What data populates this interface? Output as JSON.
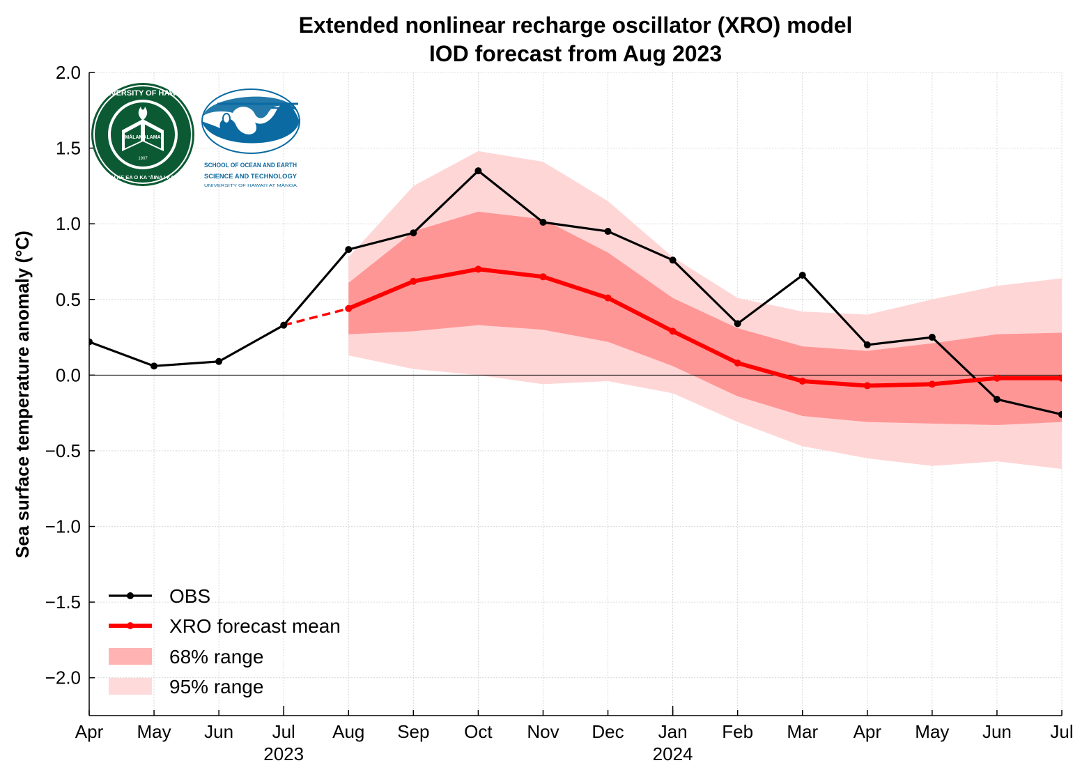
{
  "chart_data": {
    "type": "line",
    "title": "Extended nonlinear recharge oscillator (XRO) model",
    "subtitle": "IOD forecast from Aug 2023",
    "xlabel": "",
    "ylabel": "Sea surface temperature anomaly (°C)",
    "ylim": [
      -2.25,
      2.0
    ],
    "yticks": [
      "2.0",
      "1.5",
      "1.0",
      "0.5",
      "0.0",
      "−0.5",
      "−1.0",
      "−1.5",
      "−2.0"
    ],
    "ytick_values": [
      2.0,
      1.5,
      1.0,
      0.5,
      0.0,
      -0.5,
      -1.0,
      -1.5,
      -2.0
    ],
    "months": [
      "Apr",
      "May",
      "Jun",
      "Jul",
      "Aug",
      "Sep",
      "Oct",
      "Nov",
      "Dec",
      "Jan",
      "Feb",
      "Mar",
      "Apr",
      "May",
      "Jun",
      "Jul"
    ],
    "year_labels": [
      {
        "month_index": 3,
        "text": "2023"
      },
      {
        "month_index": 9,
        "text": "2024"
      }
    ],
    "grid": true,
    "legend_position": "lower-left",
    "series": [
      {
        "name": "OBS",
        "color": "#000000",
        "x_index": [
          0,
          1,
          2,
          3,
          4,
          5,
          6,
          7,
          8,
          9,
          10,
          11,
          12,
          13,
          14,
          15
        ],
        "values": [
          0.22,
          0.06,
          0.09,
          0.33,
          0.83,
          0.94,
          1.35,
          1.01,
          0.95,
          0.76,
          0.34,
          0.66,
          0.2,
          0.25,
          -0.16,
          -0.26
        ]
      },
      {
        "name": "XRO forecast mean",
        "color": "#ff0000",
        "x_index": [
          4,
          5,
          6,
          7,
          8,
          9,
          10,
          11,
          12,
          13,
          14,
          15
        ],
        "values": [
          0.44,
          0.62,
          0.7,
          0.65,
          0.51,
          0.29,
          0.08,
          -0.04,
          -0.07,
          -0.06,
          -0.02,
          -0.02
        ]
      }
    ],
    "connector": {
      "from_index": 3,
      "from_value": 0.33,
      "to_index": 4,
      "to_value": 0.44,
      "style": "dashed",
      "color": "#ff0000"
    },
    "bands": [
      {
        "name": "95% range",
        "color": "#ffd6d6",
        "x_index": [
          4,
          5,
          6,
          7,
          8,
          9,
          10,
          11,
          12,
          13,
          14,
          15
        ],
        "upper": [
          0.78,
          1.25,
          1.48,
          1.41,
          1.15,
          0.78,
          0.51,
          0.42,
          0.4,
          0.5,
          0.59,
          0.64
        ],
        "lower": [
          0.13,
          0.04,
          0.0,
          -0.06,
          -0.04,
          -0.12,
          -0.31,
          -0.47,
          -0.55,
          -0.6,
          -0.57,
          -0.62
        ]
      },
      {
        "name": "68% range",
        "color": "#ff9696",
        "x_index": [
          4,
          5,
          6,
          7,
          8,
          9,
          10,
          11,
          12,
          13,
          14,
          15
        ],
        "upper": [
          0.61,
          0.95,
          1.08,
          1.03,
          0.81,
          0.51,
          0.31,
          0.19,
          0.16,
          0.21,
          0.27,
          0.28
        ],
        "lower": [
          0.27,
          0.29,
          0.33,
          0.3,
          0.22,
          0.06,
          -0.14,
          -0.27,
          -0.31,
          -0.32,
          -0.33,
          -0.31
        ]
      }
    ],
    "legend": [
      {
        "label": "OBS",
        "kind": "line",
        "color": "#000000"
      },
      {
        "label": "XRO forecast mean",
        "kind": "line",
        "color": "#ff0000"
      },
      {
        "label": "68% range",
        "kind": "patch",
        "color": "#ffb3b3"
      },
      {
        "label": "95% range",
        "kind": "patch",
        "color": "#ffdada"
      }
    ]
  },
  "logos": {
    "uh_seal": {
      "icon": "university-of-hawaii-seal",
      "color": "#0b5a33",
      "ring_text_top": "UNIVERSITY OF HAWAIʻI",
      "ring_text_bottom": "UA MAU KE EA O KA ʻĀINA I KA PONO",
      "banner": "MĀLAMALAMA",
      "year": "1907"
    },
    "soest": {
      "icon": "soest-wave-logo",
      "color": "#0a6aa1",
      "line1": "SCHOOL OF OCEAN AND EARTH",
      "line2": "SCIENCE AND TECHNOLOGY",
      "line3": "UNIVERSITY OF HAWAIʻI AT MĀNOA"
    }
  }
}
